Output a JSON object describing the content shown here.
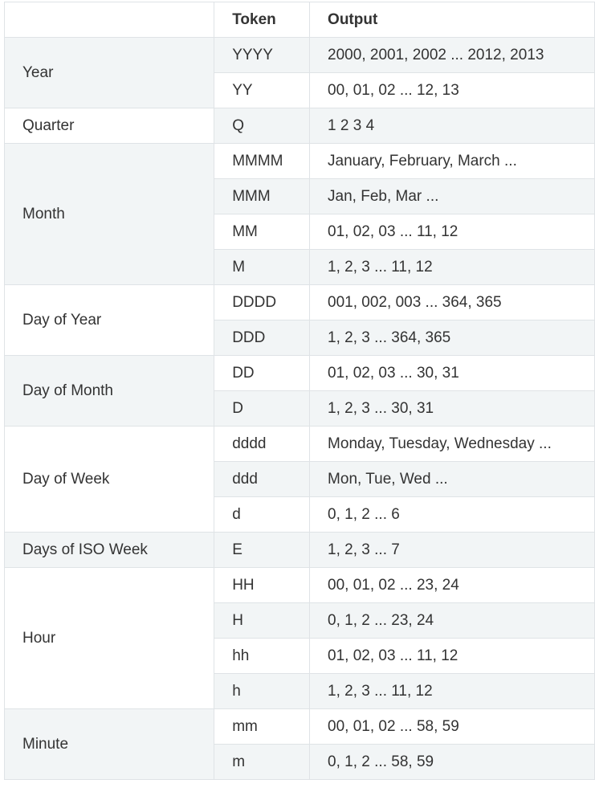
{
  "header": {
    "unit": "",
    "token": "Token",
    "output": "Output"
  },
  "groups": [
    {
      "unit": "Year",
      "rows": [
        {
          "token": "YYYY",
          "output": "2000, 2001, 2002 ... 2012, 2013"
        },
        {
          "token": "YY",
          "output": "00, 01, 02 ... 12, 13"
        }
      ]
    },
    {
      "unit": "Quarter",
      "rows": [
        {
          "token": "Q",
          "output": "1 2 3 4"
        }
      ]
    },
    {
      "unit": "Month",
      "rows": [
        {
          "token": "MMMM",
          "output": "January, February, March ..."
        },
        {
          "token": "MMM",
          "output": "Jan, Feb, Mar ..."
        },
        {
          "token": "MM",
          "output": "01, 02, 03 ... 11, 12"
        },
        {
          "token": "M",
          "output": "1, 2, 3 ... 11, 12"
        }
      ]
    },
    {
      "unit": "Day of Year",
      "rows": [
        {
          "token": "DDDD",
          "output": "001, 002, 003 ... 364, 365"
        },
        {
          "token": "DDD",
          "output": "1, 2, 3 ... 364, 365"
        }
      ]
    },
    {
      "unit": "Day of Month",
      "rows": [
        {
          "token": "DD",
          "output": "01, 02, 03 ... 30, 31"
        },
        {
          "token": "D",
          "output": "1, 2, 3 ... 30, 31"
        }
      ]
    },
    {
      "unit": "Day of Week",
      "rows": [
        {
          "token": "dddd",
          "output": "Monday, Tuesday, Wednesday ..."
        },
        {
          "token": "ddd",
          "output": "Mon, Tue, Wed ..."
        },
        {
          "token": "d",
          "output": "0, 1, 2 ... 6"
        }
      ]
    },
    {
      "unit": "Days of ISO Week",
      "rows": [
        {
          "token": "E",
          "output": "1, 2, 3 ... 7"
        }
      ]
    },
    {
      "unit": "Hour",
      "rows": [
        {
          "token": "HH",
          "output": "00, 01, 02 ... 23, 24"
        },
        {
          "token": "H",
          "output": "0, 1, 2 ... 23, 24"
        },
        {
          "token": "hh",
          "output": "01, 02, 03 ... 11, 12"
        },
        {
          "token": "h",
          "output": "1, 2, 3 ... 11, 12"
        }
      ]
    },
    {
      "unit": "Minute",
      "rows": [
        {
          "token": "mm",
          "output": "00, 01, 02 ... 58, 59"
        },
        {
          "token": "m",
          "output": "0, 1, 2 ... 58, 59"
        }
      ]
    }
  ]
}
